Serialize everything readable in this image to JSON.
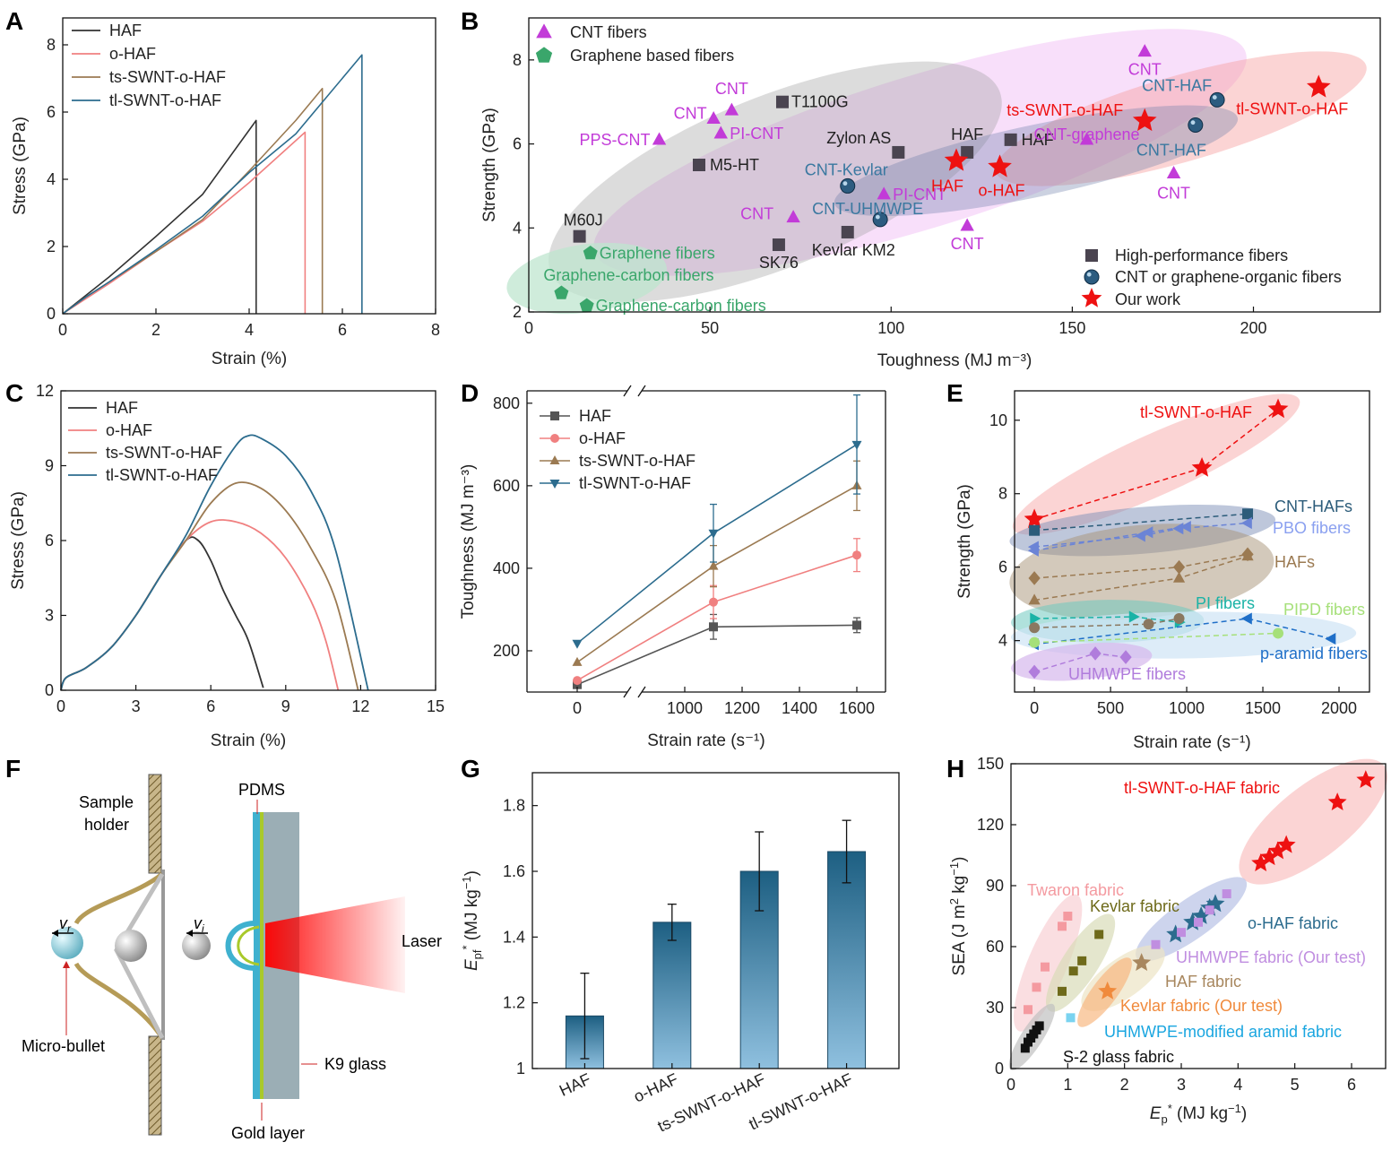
{
  "chart_data": [
    {
      "id": "A",
      "type": "line",
      "panel": "A",
      "xlabel": "Strain (%)",
      "ylabel": "Stress (GPa)",
      "xlim": [
        0,
        8
      ],
      "ylim": [
        0,
        8.8
      ],
      "xticks": [
        0,
        2,
        4,
        6,
        8
      ],
      "yticks": [
        0,
        2,
        4,
        6,
        8
      ],
      "legend": [
        "HAF",
        "o-HAF",
        "ts-SWNT-o-HAF",
        "tl-SWNT-o-HAF"
      ],
      "series": [
        {
          "name": "HAF",
          "color": "#333333",
          "x": [
            0,
            0.5,
            1,
            2,
            3,
            4.15,
            4.15
          ],
          "y": [
            0,
            0.55,
            1.1,
            2.3,
            3.55,
            5.75,
            0
          ]
        },
        {
          "name": "o-HAF",
          "color": "#f08080",
          "x": [
            0,
            0.5,
            1,
            2,
            3,
            4,
            5.2,
            5.2
          ],
          "y": [
            0,
            0.45,
            0.9,
            1.85,
            2.75,
            3.9,
            5.4,
            0
          ]
        },
        {
          "name": "ts-SWNT-o-HAF",
          "color": "#9b7a52",
          "x": [
            0,
            0.5,
            1,
            2,
            3,
            4,
            5.0,
            5.57,
            5.57
          ],
          "y": [
            0,
            0.5,
            0.95,
            1.85,
            2.8,
            4.25,
            5.75,
            6.7,
            0
          ]
        },
        {
          "name": "tl-SWNT-o-HAF",
          "color": "#2c6c8e",
          "x": [
            0,
            0.5,
            1,
            2,
            3,
            4,
            5,
            6.42,
            6.42
          ],
          "y": [
            0,
            0.5,
            0.95,
            1.9,
            2.9,
            4.2,
            5.35,
            7.7,
            0
          ]
        }
      ]
    },
    {
      "id": "B",
      "type": "scatter",
      "panel": "B",
      "xlabel": "Toughness (MJ m⁻³)",
      "ylabel": "Strength (GPa)",
      "xlim": [
        0,
        235
      ],
      "ylim": [
        2,
        9
      ],
      "xticks": [
        0,
        50,
        100,
        150,
        200
      ],
      "yticks": [
        2,
        4,
        6,
        8
      ],
      "legend_top": [
        "CNT fibers",
        "Graphene based fibers"
      ],
      "legend_bottom": [
        "High-performance fibers",
        "CNT or graphene-organic fibers",
        "Our work"
      ],
      "points": [
        {
          "group": "high",
          "label": "T1100G",
          "x": 70,
          "y": 7.0
        },
        {
          "group": "high",
          "label": "M5-HT",
          "x": 47,
          "y": 5.5
        },
        {
          "group": "high",
          "label": "Zylon AS",
          "x": 102,
          "y": 5.8
        },
        {
          "group": "high",
          "label": "HAF",
          "x": 121,
          "y": 5.8
        },
        {
          "group": "high",
          "label": "HAF",
          "x": 133,
          "y": 6.1
        },
        {
          "group": "high",
          "label": "M60J",
          "x": 14,
          "y": 3.8
        },
        {
          "group": "high",
          "label": "SK76",
          "x": 69,
          "y": 3.6
        },
        {
          "group": "high",
          "label": "Kevlar KM2",
          "x": 88,
          "y": 3.9
        },
        {
          "group": "cnt",
          "label": "CNT",
          "x": 56,
          "y": 6.8
        },
        {
          "group": "cnt",
          "label": "CNT",
          "x": 51,
          "y": 6.6
        },
        {
          "group": "cnt",
          "label": "PI-CNT",
          "x": 53,
          "y": 6.25
        },
        {
          "group": "cnt",
          "label": "PPS-CNT",
          "x": 36,
          "y": 6.1
        },
        {
          "group": "cnt",
          "label": "CNT",
          "x": 73,
          "y": 4.25
        },
        {
          "group": "cnt",
          "label": "PI-CNT",
          "x": 98,
          "y": 4.8
        },
        {
          "group": "cnt",
          "label": "CNT",
          "x": 121,
          "y": 4.05
        },
        {
          "group": "cnt",
          "label": "CNT-graphene",
          "x": 154,
          "y": 6.1
        },
        {
          "group": "cnt",
          "label": "CNT",
          "x": 170,
          "y": 8.2
        },
        {
          "group": "cnt",
          "label": "CNT",
          "x": 178,
          "y": 5.3
        },
        {
          "group": "organic",
          "label": "CNT-Kevlar",
          "x": 88,
          "y": 5.0
        },
        {
          "group": "organic",
          "label": "CNT-UHMWPE",
          "x": 97,
          "y": 4.2
        },
        {
          "group": "organic",
          "label": "CNT-HAF",
          "x": 190,
          "y": 7.05
        },
        {
          "group": "organic",
          "label": "CNT-HAF",
          "x": 184,
          "y": 6.45
        },
        {
          "group": "graphene",
          "label": "Graphene fibers",
          "x": 17,
          "y": 3.4
        },
        {
          "group": "graphene",
          "label": "Graphene-carbon fibers",
          "x": 9,
          "y": 2.45
        },
        {
          "group": "graphene",
          "label": "Graphene-carbon fibers",
          "x": 16,
          "y": 2.15
        },
        {
          "group": "ours",
          "label": "HAF",
          "x": 118,
          "y": 5.6
        },
        {
          "group": "ours",
          "label": "o-HAF",
          "x": 130,
          "y": 5.45
        },
        {
          "group": "ours",
          "label": "ts-SWNT-o-HAF",
          "x": 170,
          "y": 6.55
        },
        {
          "group": "ours",
          "label": "tl-SWNT-o-HAF",
          "x": 218,
          "y": 7.35
        }
      ]
    },
    {
      "id": "C",
      "type": "line",
      "panel": "C",
      "xlabel": "Strain (%)",
      "ylabel": "Stress (GPa)",
      "xlim": [
        0,
        15
      ],
      "ylim": [
        0,
        12
      ],
      "xticks": [
        0,
        3,
        6,
        9,
        12,
        15
      ],
      "yticks": [
        0,
        3,
        6,
        9,
        12
      ],
      "legend": [
        "HAF",
        "o-HAF",
        "ts-SWNT-o-HAF",
        "tl-SWNT-o-HAF"
      ],
      "series": [
        {
          "name": "HAF",
          "color": "#333333",
          "x": [
            0,
            0.2,
            1,
            2,
            3,
            4,
            5,
            5.5,
            6,
            6.5,
            7,
            7.5,
            8.1
          ],
          "y": [
            0,
            0.5,
            0.9,
            1.7,
            3.0,
            4.6,
            6.0,
            6.0,
            5.2,
            4.0,
            3.0,
            2.0,
            0.1
          ]
        },
        {
          "name": "o-HAF",
          "color": "#f08080",
          "x": [
            0,
            0.2,
            1,
            2,
            3,
            4,
            5,
            6,
            7,
            8,
            9,
            10,
            10.6,
            11.1
          ],
          "y": [
            0,
            0.5,
            0.9,
            1.7,
            3.0,
            4.6,
            6.0,
            6.75,
            6.75,
            6.3,
            5.3,
            3.6,
            2.0,
            0
          ]
        },
        {
          "name": "ts-SWNT-o-HAF",
          "color": "#9b7a52",
          "x": [
            0,
            0.2,
            1,
            2,
            3,
            4,
            5,
            6,
            7,
            8,
            9,
            10,
            11,
            11.9
          ],
          "y": [
            0,
            0.5,
            0.9,
            1.7,
            3.0,
            4.6,
            6.0,
            7.5,
            8.3,
            8.1,
            7.2,
            5.7,
            3.6,
            0
          ]
        },
        {
          "name": "tl-SWNT-o-HAF",
          "color": "#2c6c8e",
          "x": [
            0,
            0.2,
            1,
            2,
            3,
            4,
            5,
            6,
            7,
            7.5,
            8,
            9,
            10,
            11,
            12.3
          ],
          "y": [
            0,
            0.5,
            0.9,
            1.7,
            3.0,
            4.6,
            6.2,
            8.2,
            9.8,
            10.2,
            10.1,
            9.4,
            8.0,
            5.6,
            0
          ]
        }
      ]
    },
    {
      "id": "D",
      "type": "line",
      "panel": "D",
      "xlabel": "Strain rate (s⁻¹)",
      "ylabel": "Toughness (MJ m⁻³)",
      "ylim": [
        100,
        830
      ],
      "yticks": [
        200,
        400,
        600,
        800
      ],
      "xticks": [
        0,
        1000,
        1200,
        1400,
        1600
      ],
      "x_break": [
        0,
        850
      ],
      "xlim_right": [
        850,
        1700
      ],
      "legend": [
        "HAF",
        "o-HAF",
        "ts-SWNT-o-HAF",
        "tl-SWNT-o-HAF"
      ],
      "series": [
        {
          "name": "HAF",
          "color": "#555555",
          "marker": "square",
          "x": [
            0,
            1100,
            1600
          ],
          "y": [
            118,
            258,
            262
          ],
          "err": [
            0,
            30,
            18
          ]
        },
        {
          "name": "o-HAF",
          "color": "#f08080",
          "marker": "circle",
          "x": [
            0,
            1100,
            1600
          ],
          "y": [
            128,
            318,
            432
          ],
          "err": [
            0,
            40,
            40
          ]
        },
        {
          "name": "ts-SWNT-o-HAF",
          "color": "#9b7a52",
          "marker": "triangle-up",
          "x": [
            0,
            1100,
            1600
          ],
          "y": [
            172,
            405,
            600
          ],
          "err": [
            0,
            50,
            60
          ]
        },
        {
          "name": "tl-SWNT-o-HAF",
          "color": "#2c6c8e",
          "marker": "triangle-down",
          "x": [
            0,
            1100,
            1600
          ],
          "y": [
            218,
            485,
            700
          ],
          "err": [
            0,
            70,
            120
          ]
        }
      ]
    },
    {
      "id": "E",
      "type": "scatter",
      "panel": "E",
      "xlabel": "Strain rate (s⁻¹)",
      "ylabel": "Strength (GPa)",
      "xlim": [
        -130,
        2200
      ],
      "ylim": [
        2.6,
        10.8
      ],
      "xticks": [
        0,
        500,
        1000,
        1500,
        2000
      ],
      "yticks": [
        4,
        6,
        8,
        10
      ],
      "series": [
        {
          "name": "tl-SWNT-o-HAF",
          "color": "#ee1111",
          "marker": "star",
          "x": [
            0,
            1100,
            1600
          ],
          "y": [
            7.3,
            8.7,
            10.3
          ]
        },
        {
          "name": "CNT-HAFs",
          "color": "#2c5c7a",
          "marker": "square",
          "x": [
            0,
            1400
          ],
          "y": [
            7.0,
            7.45
          ]
        },
        {
          "name": "PBO fibers",
          "color": "#6b84d6",
          "marker": "triangle-left",
          "x": [
            0,
            700,
            950,
            1400
          ],
          "y": [
            6.55,
            6.85,
            7.05,
            7.2
          ]
        },
        {
          "name": "PBO fibers b",
          "color": "#6b84d6",
          "marker": "triangle-left",
          "x": [
            0,
            750,
            1000
          ],
          "y": [
            6.45,
            6.95,
            7.1
          ]
        },
        {
          "name": "HAFs",
          "color": "#9b7a52",
          "marker": "diamond",
          "x": [
            0,
            950,
            1400
          ],
          "y": [
            5.7,
            6.0,
            6.35
          ]
        },
        {
          "name": "HAFs b",
          "color": "#9b7a52",
          "marker": "triangle-up",
          "x": [
            0,
            950,
            1400
          ],
          "y": [
            5.1,
            5.7,
            6.3
          ]
        },
        {
          "name": "PI fibers",
          "color": "#1ab3a6",
          "marker": "triangle-right",
          "x": [
            0,
            650,
            950
          ],
          "y": [
            4.6,
            4.65,
            4.5
          ]
        },
        {
          "name": "HAF c",
          "color": "#8a7860",
          "marker": "circle",
          "x": [
            0,
            750,
            950
          ],
          "y": [
            4.35,
            4.45,
            4.6
          ]
        },
        {
          "name": "p-aramid fibers",
          "color": "#1f6fc8",
          "marker": "triangle-left",
          "x": [
            0,
            1400,
            1950
          ],
          "y": [
            3.9,
            4.6,
            4.05
          ]
        },
        {
          "name": "PIPD fibers",
          "color": "#a6e07a",
          "marker": "circle",
          "x": [
            0,
            1600
          ],
          "y": [
            3.95,
            4.2
          ]
        },
        {
          "name": "UHMWPE fibers",
          "color": "#b07cdc",
          "marker": "diamond",
          "x": [
            0,
            400,
            600
          ],
          "y": [
            3.15,
            3.65,
            3.55
          ]
        }
      ],
      "labels": [
        "tl-SWNT-o-HAF",
        "CNT-HAFs",
        "PBO fibers",
        "HAFs",
        "PI fibers",
        "PIPD fibers",
        "p-aramid fibers",
        "UHMWPE fibers"
      ]
    },
    {
      "id": "G",
      "type": "bar",
      "panel": "G",
      "xlabel": "",
      "ylabel": "Epf* (MJ kg⁻¹)",
      "categories": [
        "HAF",
        "o-HAF",
        "ts-SWNT-o-HAF",
        "tl-SWNT-o-HAF"
      ],
      "values": [
        1.16,
        1.445,
        1.6,
        1.66
      ],
      "errors": [
        0.13,
        0.055,
        0.12,
        0.095
      ],
      "ylim": [
        1.0,
        1.9
      ],
      "yticks": [
        1.0,
        1.2,
        1.4,
        1.6,
        1.8
      ]
    },
    {
      "id": "H",
      "type": "scatter",
      "panel": "H",
      "xlabel": "Ep* (MJ kg⁻¹)",
      "ylabel": "SEA (J m² kg⁻¹)",
      "xlim": [
        0,
        6.6
      ],
      "ylim": [
        0,
        150
      ],
      "xticks": [
        0,
        1,
        2,
        3,
        4,
        5,
        6
      ],
      "yticks": [
        0,
        30,
        60,
        90,
        120,
        150
      ],
      "series": [
        {
          "name": "tl-SWNT-o-HAF fabric",
          "color": "#ee1111",
          "marker": "star",
          "x": [
            4.4,
            4.55,
            4.7,
            4.85,
            5.75,
            6.25
          ],
          "y": [
            101,
            104,
            107,
            110,
            131,
            142
          ]
        },
        {
          "name": "Twaron fabric",
          "color": "#f49aa0",
          "marker": "square",
          "x": [
            0.3,
            0.45,
            0.6,
            0.9,
            1.0
          ],
          "y": [
            29,
            40,
            50,
            70,
            75
          ]
        },
        {
          "name": "Kevlar fabric",
          "color": "#6e6a1a",
          "marker": "square",
          "x": [
            0.9,
            1.1,
            1.25,
            1.55
          ],
          "y": [
            38,
            48,
            53,
            66
          ]
        },
        {
          "name": "o-HAF fabric",
          "color": "#2c6c8e",
          "marker": "star",
          "x": [
            2.9,
            3.2,
            3.35,
            3.5,
            3.6
          ],
          "y": [
            66,
            72,
            75,
            79,
            81
          ]
        },
        {
          "name": "UHMWPE fabric (Our test)",
          "color": "#c08ee0",
          "marker": "square",
          "x": [
            2.55,
            3.0,
            3.3,
            3.5,
            3.8
          ],
          "y": [
            61,
            67,
            72,
            78,
            86
          ]
        },
        {
          "name": "HAF fabric",
          "color": "#a8875e",
          "marker": "star",
          "x": [
            2.3
          ],
          "y": [
            52
          ]
        },
        {
          "name": "Kevlar fabric (Our test)",
          "color": "#f08a3c",
          "marker": "star",
          "x": [
            1.7
          ],
          "y": [
            38
          ]
        },
        {
          "name": "UHMWPE-modified aramid fabric",
          "color": "#7ad3f0",
          "marker": "square",
          "x": [
            1.05
          ],
          "y": [
            25
          ]
        },
        {
          "name": "S-2 glass fabric",
          "color": "#111111",
          "marker": "square",
          "x": [
            0.25,
            0.3,
            0.35,
            0.4,
            0.45,
            0.5
          ],
          "y": [
            10,
            13,
            15,
            17,
            19,
            21
          ]
        }
      ]
    }
  ],
  "panels": {
    "A": "A",
    "B": "B",
    "C": "C",
    "D": "D",
    "E": "E",
    "F": "F",
    "G": "G",
    "H": "H"
  },
  "schematic_F": {
    "sample_holder": "Sample\nholder",
    "sample_holder_1": "Sample",
    "sample_holder_2": "holder",
    "micro_bullet": "Micro-bullet",
    "pdms": "PDMS",
    "laser": "Laser",
    "k9_glass": "K9 glass",
    "gold_layer": "Gold layer",
    "vr": "v",
    "vr_sub": "r",
    "vi": "v",
    "vi_sub": "i"
  },
  "colors": {
    "red": "#ee1111",
    "blue": "#2c6c8e",
    "magenta": "#c23bd8",
    "green": "#3aa66b"
  }
}
